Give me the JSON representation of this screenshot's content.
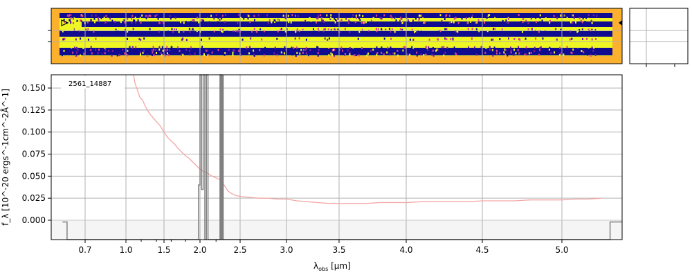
{
  "chart_data": {
    "type": "line",
    "object_label": "2561_14887",
    "xlabel_main": "λ",
    "xlabel_sub": "obs",
    "xlabel_unit": " [μm]",
    "ylabel": "f_λ [10^-20 ergs^-1cm^-2Å^-1]",
    "xtick_labels": [
      "0.7",
      "1.0",
      "1.5",
      "2.0",
      "2.5",
      "3.0",
      "3.5",
      "4.0",
      "4.5",
      "5.0"
    ],
    "ytick_labels": [
      "0.000",
      "0.025",
      "0.050",
      "0.075",
      "0.100",
      "0.125",
      "0.150"
    ],
    "xticks": [
      0.7,
      1.0,
      1.5,
      2.0,
      2.5,
      3.0,
      3.5,
      4.0,
      4.5,
      5.0
    ],
    "yticks": [
      0.0,
      0.025,
      0.05,
      0.075,
      0.1,
      0.125,
      0.15
    ],
    "ylim": [
      -0.022,
      0.165
    ],
    "grid": true,
    "series": [
      {
        "color": "#f4a6a6",
        "x": [
          1.1,
          1.12,
          1.15,
          1.18,
          1.22,
          1.25,
          1.28,
          1.32,
          1.36,
          1.4,
          1.45,
          1.5,
          1.55,
          1.6,
          1.65,
          1.7,
          1.75,
          1.8,
          1.85,
          1.9,
          1.95,
          2.0,
          2.05,
          2.1,
          2.15,
          2.2,
          2.25,
          2.3,
          2.35,
          2.4,
          2.45,
          2.5,
          2.6,
          2.7,
          2.8,
          2.9,
          3.0,
          3.1,
          3.2,
          3.3,
          3.4,
          3.5,
          3.6,
          3.7,
          3.8,
          3.9,
          4.0,
          4.1,
          4.2,
          4.3,
          4.4,
          4.5,
          4.6,
          4.7,
          4.8,
          4.9,
          5.0,
          5.1,
          5.2,
          5.3
        ],
        "y": [
          0.165,
          0.155,
          0.148,
          0.14,
          0.136,
          0.13,
          0.125,
          0.12,
          0.116,
          0.112,
          0.107,
          0.1,
          0.094,
          0.09,
          0.086,
          0.081,
          0.077,
          0.073,
          0.07,
          0.066,
          0.062,
          0.058,
          0.055,
          0.053,
          0.05,
          0.048,
          0.046,
          0.04,
          0.033,
          0.03,
          0.028,
          0.027,
          0.026,
          0.025,
          0.025,
          0.024,
          0.024,
          0.022,
          0.021,
          0.02,
          0.019,
          0.019,
          0.019,
          0.019,
          0.02,
          0.02,
          0.02,
          0.021,
          0.021,
          0.021,
          0.021,
          0.022,
          0.022,
          0.022,
          0.023,
          0.023,
          0.023,
          0.024,
          0.024,
          0.025
        ]
      },
      {
        "color": "#808080",
        "x": [
          0.6,
          0.62,
          0.62,
          1.98,
          1.98,
          2.0,
          2.0,
          2.02,
          2.02,
          2.04,
          2.04,
          2.06,
          2.06,
          2.08,
          2.08,
          2.1,
          2.1,
          2.25,
          2.25,
          2.27,
          2.27,
          2.29,
          2.29,
          5.36,
          5.36,
          5.45
        ],
        "y": [
          -0.002,
          -0.002,
          -0.022,
          -0.022,
          0.04,
          0.04,
          0.165,
          0.165,
          0.035,
          0.035,
          0.165,
          0.165,
          -0.022,
          -0.022,
          0.165,
          0.165,
          -0.022,
          -0.022,
          0.165,
          0.165,
          -0.022,
          -0.022,
          -0.022,
          -0.022,
          -0.002,
          -0.002
        ]
      }
    ]
  }
}
